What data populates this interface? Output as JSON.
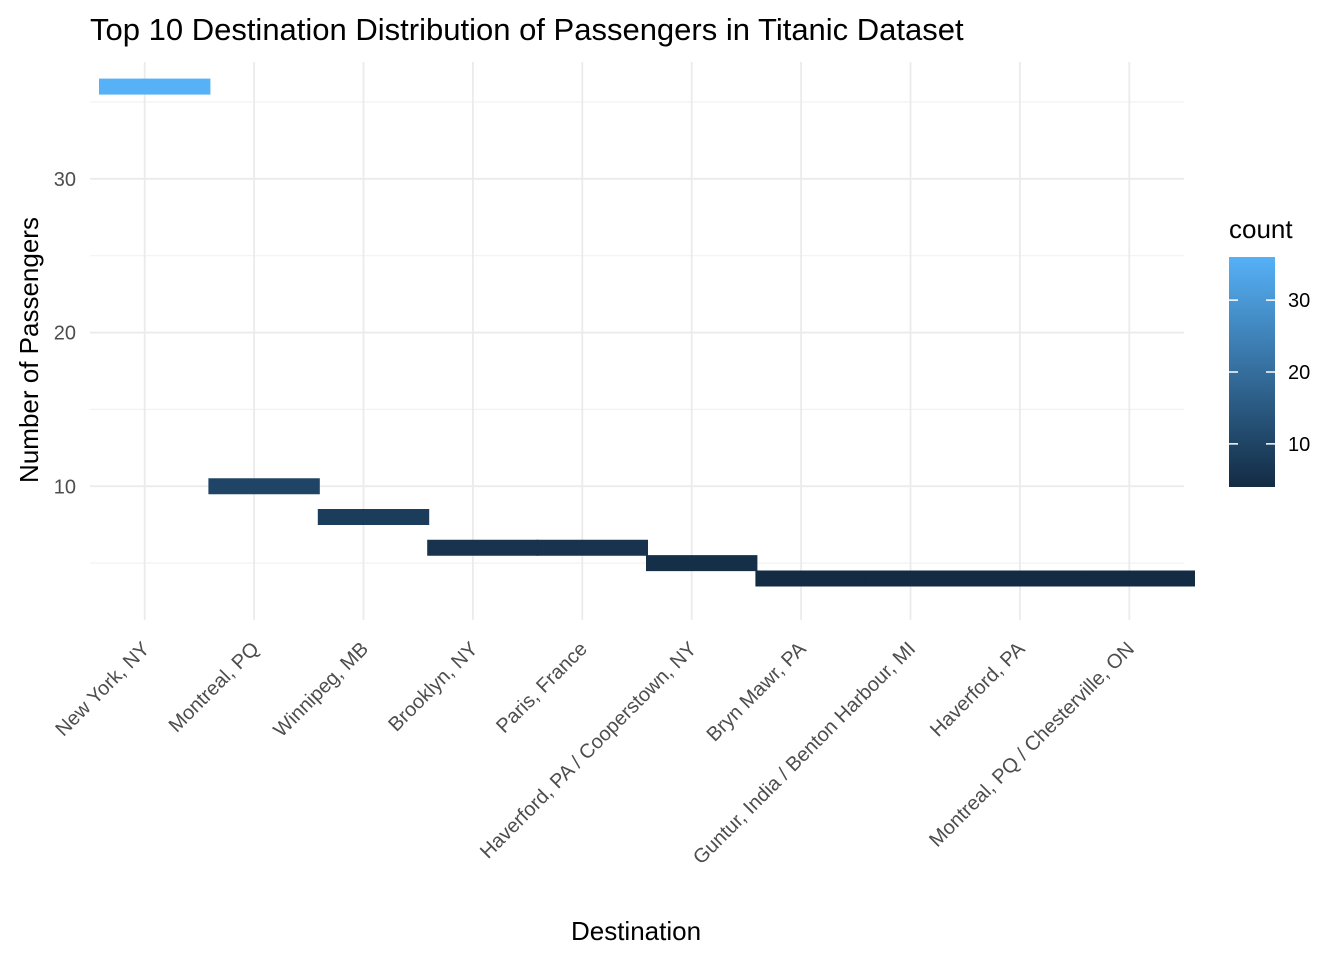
{
  "chart_data": {
    "type": "bar",
    "title": "Top 10 Destination Distribution of Passengers in Titanic Dataset",
    "xlabel": "Destination",
    "ylabel": "Number of Passengers",
    "categories": [
      "New York, NY",
      "Montreal, PQ",
      "Winnipeg, MB",
      "Brooklyn, NY",
      "Paris, France",
      "Haverford, PA / Cooperstown, NY",
      "Bryn Mawr, PA",
      "Guntur, India / Benton Harbour, MI",
      "Haverford, PA",
      "Montreal, PQ / Chesterville, ON"
    ],
    "values": [
      36,
      10,
      8,
      6,
      6,
      5,
      4,
      4,
      4,
      4
    ],
    "ylim": [
      1.3,
      37.6
    ],
    "yticks": [
      10,
      20,
      30
    ],
    "grid": true,
    "legend": {
      "title": "count",
      "position": "right",
      "ticks": [
        10,
        20,
        30
      ],
      "range": [
        4,
        36
      ],
      "color_low": "#132B43",
      "color_high": "#56B1F7"
    }
  }
}
